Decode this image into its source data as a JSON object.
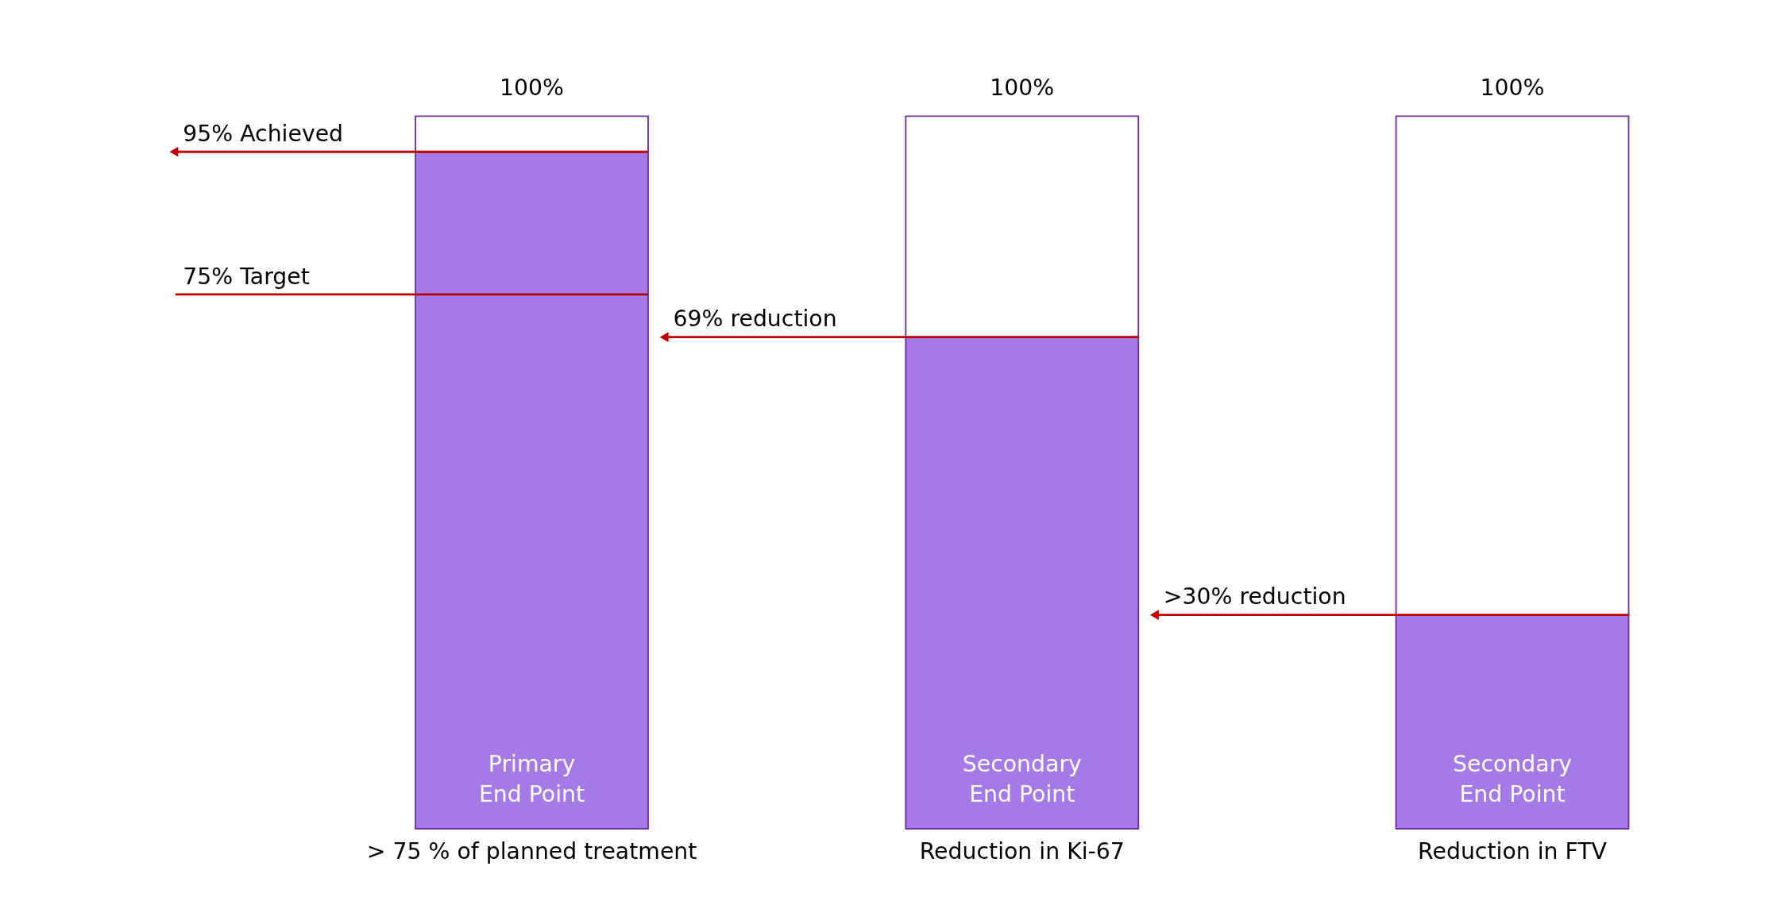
{
  "chart_data": {
    "type": "bar",
    "categories": [
      "> 75 % of planned treatment",
      "Reduction in Ki-67",
      "Reduction in FTV"
    ],
    "stacked": true,
    "series": [
      {
        "color": "#a47ae6",
        "values": [
          95,
          69,
          30
        ],
        "value_labels": [
          "95% Achieved",
          "69% reduction",
          ">30% reduction"
        ]
      },
      {
        "color": "#ffffff",
        "values": [
          5,
          31,
          70
        ]
      }
    ],
    "totals": [
      "100%",
      "100%",
      "100%"
    ],
    "ylim": [
      0,
      100
    ],
    "tick_labels": "x",
    "ref_lines": [
      {
        "axis": "y",
        "value": 75,
        "label": "75% Target",
        "color": "#c00000"
      }
    ],
    "annotations": [
      "Primary End Point",
      "Secondary End Point",
      "Secondary End Point"
    ]
  }
}
